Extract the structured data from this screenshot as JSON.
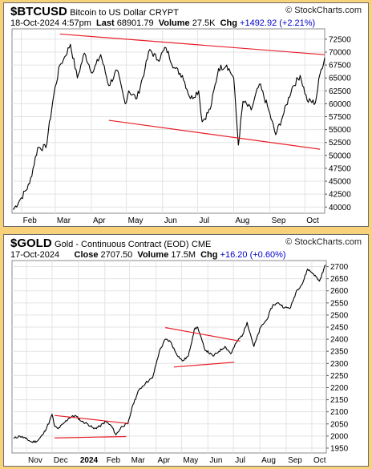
{
  "panels": [
    {
      "symbol": "$BTCUSD",
      "name": "Bitcoin to US Dollar",
      "exchange": "CRYPT",
      "date": "18-Oct-2024 4:57pm",
      "last_label": "Last",
      "last": "68901.79",
      "volume_label": "Volume",
      "volume": "27.5K",
      "chg_label": "Chg",
      "chg": "+1492.92 (+2.21%)",
      "brand": "© StockCharts.com"
    },
    {
      "symbol": "$GOLD",
      "name": "Gold - Continuous Contract (EOD)",
      "exchange": "CME",
      "date": "17-Oct-2024",
      "last_label": "Close",
      "last": "2707.50",
      "volume_label": "Volume",
      "volume": "17.5M",
      "chg_label": "Chg",
      "chg": "+16.20 (+0.60%)",
      "brand": "© StockCharts.com"
    }
  ],
  "chart_data": [
    {
      "type": "line",
      "series": [
        {
          "x": [
            "2024-01-25",
            "2024-02-01",
            "2024-02-08",
            "2024-02-15",
            "2024-02-22",
            "2024-02-29",
            "2024-03-05",
            "2024-03-08",
            "2024-03-14",
            "2024-03-20",
            "2024-03-26",
            "2024-04-02",
            "2024-04-09",
            "2024-04-16",
            "2024-04-23",
            "2024-04-30",
            "2024-05-03",
            "2024-05-10",
            "2024-05-17",
            "2024-05-21",
            "2024-05-28",
            "2024-06-04",
            "2024-06-11",
            "2024-06-18",
            "2024-06-25",
            "2024-07-02",
            "2024-07-05",
            "2024-07-12",
            "2024-07-19",
            "2024-07-26",
            "2024-08-01",
            "2024-08-05",
            "2024-08-09",
            "2024-08-16",
            "2024-08-23",
            "2024-08-30",
            "2024-09-06",
            "2024-09-13",
            "2024-09-20",
            "2024-09-27",
            "2024-10-03",
            "2024-10-10",
            "2024-10-14",
            "2024-10-18"
          ],
          "values": [
            39500,
            41800,
            44500,
            51500,
            51500,
            62000,
            67500,
            68500,
            71500,
            65000,
            69800,
            66000,
            69500,
            63500,
            66500,
            60000,
            62500,
            61000,
            66800,
            70500,
            68500,
            70800,
            67000,
            65500,
            61000,
            62500,
            56500,
            59000,
            66800,
            67500,
            65000,
            52000,
            60500,
            58800,
            63800,
            59500,
            54000,
            58200,
            63100,
            65500,
            60600,
            60200,
            65800,
            68900
          ]
        }
      ],
      "yticks": [
        40000,
        42500,
        45000,
        47500,
        50000,
        52500,
        55000,
        57500,
        60000,
        62500,
        65000,
        67500,
        70000,
        72500
      ],
      "ylim": [
        38800,
        74500
      ],
      "xlim": [
        "2024-01-24",
        "2024-10-18"
      ],
      "xticks": [
        {
          "label": "Feb",
          "date": "2024-02-01"
        },
        {
          "label": "Mar",
          "date": "2024-03-01"
        },
        {
          "label": "Apr",
          "date": "2024-04-01"
        },
        {
          "label": "May",
          "date": "2024-05-01"
        },
        {
          "label": "Jun",
          "date": "2024-06-01"
        },
        {
          "label": "Jul",
          "date": "2024-07-01"
        },
        {
          "label": "Aug",
          "date": "2024-08-01"
        },
        {
          "label": "Sep",
          "date": "2024-09-01"
        },
        {
          "label": "Oct",
          "date": "2024-10-01"
        }
      ],
      "trendlines": [
        {
          "x": [
            "2024-03-05",
            "2024-10-18"
          ],
          "y": [
            73500,
            69500
          ]
        },
        {
          "x": [
            "2024-04-16",
            "2024-10-14"
          ],
          "y": [
            56800,
            51200
          ]
        }
      ],
      "line_color": "#000000",
      "trend_color": "#e8202a"
    },
    {
      "type": "line",
      "series": [
        {
          "x": [
            "2023-10-17",
            "2023-10-24",
            "2023-10-31",
            "2023-11-07",
            "2023-11-14",
            "2023-11-21",
            "2023-11-28",
            "2023-12-01",
            "2023-12-04",
            "2023-12-08",
            "2023-12-14",
            "2023-12-21",
            "2023-12-28",
            "2024-01-05",
            "2024-01-12",
            "2024-01-19",
            "2024-01-26",
            "2024-02-02",
            "2024-02-09",
            "2024-02-14",
            "2024-02-21",
            "2024-02-28",
            "2024-03-05",
            "2024-03-12",
            "2024-03-20",
            "2024-03-28",
            "2024-04-05",
            "2024-04-12",
            "2024-04-18",
            "2024-04-25",
            "2024-05-02",
            "2024-05-09",
            "2024-05-16",
            "2024-05-20",
            "2024-05-28",
            "2024-06-07",
            "2024-06-14",
            "2024-06-21",
            "2024-06-28",
            "2024-07-05",
            "2024-07-12",
            "2024-07-17",
            "2024-07-25",
            "2024-08-02",
            "2024-08-09",
            "2024-08-16",
            "2024-08-23",
            "2024-08-30",
            "2024-09-06",
            "2024-09-13",
            "2024-09-20",
            "2024-09-26",
            "2024-10-03",
            "2024-10-10",
            "2024-10-17"
          ],
          "values": [
            1990,
            2000,
            1990,
            1975,
            1980,
            2010,
            2060,
            2090,
            2040,
            2030,
            2050,
            2075,
            2085,
            2060,
            2050,
            2030,
            2040,
            2060,
            2040,
            2005,
            2040,
            2050,
            2130,
            2190,
            2220,
            2240,
            2350,
            2400,
            2390,
            2340,
            2310,
            2330,
            2440,
            2450,
            2360,
            2330,
            2350,
            2370,
            2340,
            2390,
            2420,
            2470,
            2370,
            2450,
            2480,
            2540,
            2550,
            2530,
            2530,
            2600,
            2630,
            2690,
            2670,
            2640,
            2707
          ]
        }
      ],
      "yticks": [
        1950,
        2000,
        2050,
        2100,
        2150,
        2200,
        2250,
        2300,
        2350,
        2400,
        2450,
        2500,
        2550,
        2600,
        2650,
        2700
      ],
      "ylim": [
        1930,
        2725
      ],
      "xlim": [
        "2023-10-15",
        "2024-10-18"
      ],
      "xticks": [
        {
          "label": "Nov",
          "date": "2023-11-01",
          "bold": false
        },
        {
          "label": "Dec",
          "date": "2023-12-01",
          "bold": false
        },
        {
          "label": "2024",
          "date": "2024-01-01",
          "bold": true
        },
        {
          "label": "Feb",
          "date": "2024-02-01",
          "bold": false
        },
        {
          "label": "Mar",
          "date": "2024-03-01",
          "bold": false
        },
        {
          "label": "Apr",
          "date": "2024-04-01",
          "bold": false
        },
        {
          "label": "May",
          "date": "2024-05-01",
          "bold": false
        },
        {
          "label": "Jun",
          "date": "2024-06-01",
          "bold": false
        },
        {
          "label": "Jul",
          "date": "2024-07-01",
          "bold": false
        },
        {
          "label": "Aug",
          "date": "2024-08-01",
          "bold": false
        },
        {
          "label": "Sep",
          "date": "2024-09-01",
          "bold": false
        },
        {
          "label": "Oct",
          "date": "2024-10-01",
          "bold": false
        }
      ],
      "trendlines": [
        {
          "x": [
            "2023-12-04",
            "2024-02-29"
          ],
          "y": [
            2085,
            2052
          ]
        },
        {
          "x": [
            "2023-12-04",
            "2024-02-26"
          ],
          "y": [
            1992,
            1998
          ]
        },
        {
          "x": [
            "2024-04-12",
            "2024-07-09"
          ],
          "y": [
            2448,
            2392
          ]
        },
        {
          "x": [
            "2024-04-22",
            "2024-07-02"
          ],
          "y": [
            2285,
            2305
          ]
        }
      ],
      "line_color": "#000000",
      "trend_color": "#e8202a"
    }
  ]
}
